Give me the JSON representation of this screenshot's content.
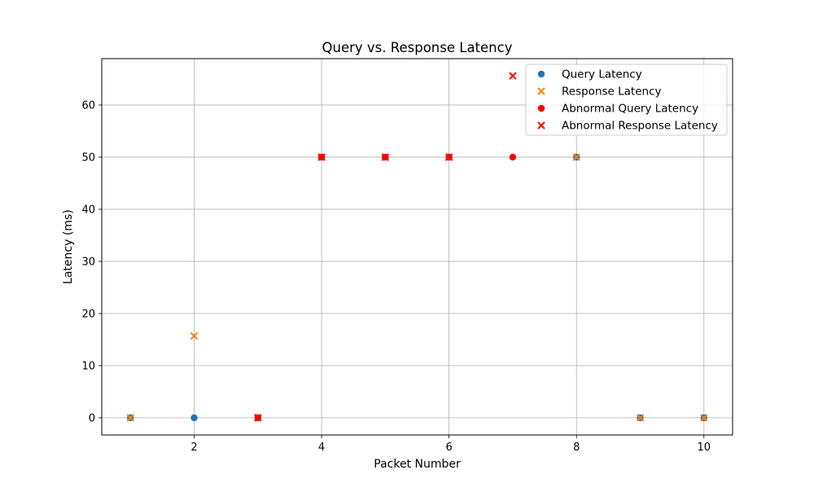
{
  "chart_data": {
    "type": "scatter",
    "title": "Query vs. Response Latency",
    "xlabel": "Packet Number",
    "ylabel": "Latency (ms)",
    "xlim": [
      0.55,
      10.45
    ],
    "ylim": [
      -3.3,
      68.9
    ],
    "xticks": [
      2,
      4,
      6,
      8,
      10
    ],
    "yticks": [
      0,
      10,
      20,
      30,
      40,
      50,
      60
    ],
    "grid": true,
    "legend_position": "top-right",
    "series": [
      {
        "name": "Query Latency",
        "marker": "circle",
        "color": "#1f77b4",
        "points": [
          [
            1,
            0
          ],
          [
            2,
            0
          ],
          [
            3,
            0
          ],
          [
            4,
            50
          ],
          [
            5,
            50
          ],
          [
            6,
            50
          ],
          [
            8,
            50
          ],
          [
            9,
            0
          ],
          [
            10,
            0
          ]
        ]
      },
      {
        "name": "Response Latency",
        "marker": "x",
        "color": "#ff7f0e",
        "points": [
          [
            1,
            0
          ],
          [
            2,
            15.7
          ],
          [
            3,
            0
          ],
          [
            4,
            50
          ],
          [
            5,
            50
          ],
          [
            6,
            50
          ],
          [
            8,
            50
          ],
          [
            9,
            0
          ],
          [
            10,
            0
          ]
        ]
      },
      {
        "name": "Abnormal Query Latency",
        "marker": "circle",
        "color": "#ff0000",
        "points": [
          [
            3,
            0
          ],
          [
            4,
            50
          ],
          [
            5,
            50
          ],
          [
            6,
            50
          ],
          [
            7,
            50
          ]
        ]
      },
      {
        "name": "Abnormal Response Latency",
        "marker": "x",
        "color": "#ff0000",
        "points": [
          [
            3,
            0
          ],
          [
            4,
            50
          ],
          [
            5,
            50
          ],
          [
            6,
            50
          ],
          [
            7,
            65.6
          ]
        ]
      }
    ]
  }
}
